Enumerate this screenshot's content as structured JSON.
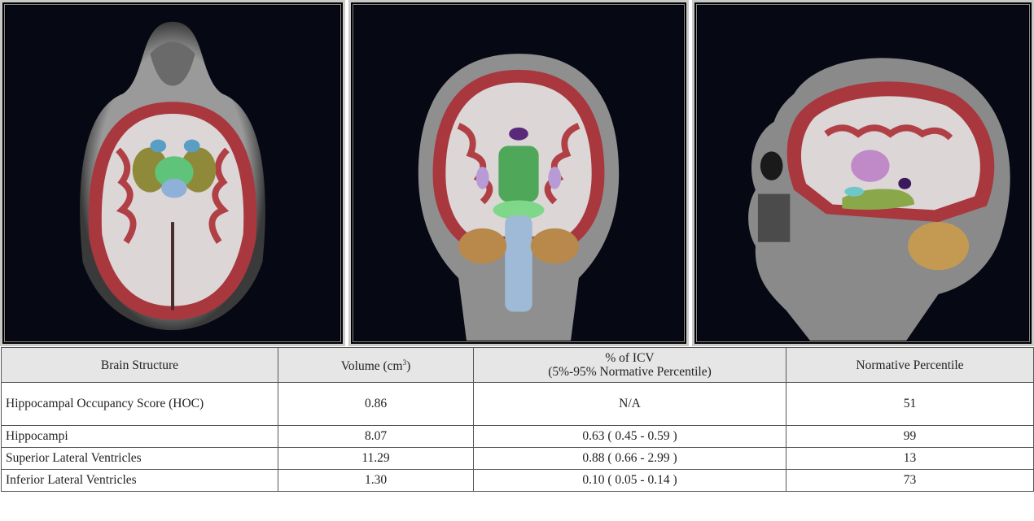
{
  "panels": [
    {
      "view": "axial"
    },
    {
      "view": "coronal"
    },
    {
      "view": "sagittal"
    }
  ],
  "table": {
    "headers": {
      "structure": "Brain Structure",
      "volume": "Volume (cm",
      "volume_sup": "3",
      "volume_close": ")",
      "icv_line1": "% of ICV",
      "icv_line2": "(5%-95% Normative Percentile)",
      "percentile": "Normative Percentile"
    },
    "rows": [
      {
        "structure": "Hippocampal Occupancy Score (HOC)",
        "volume": "0.86",
        "icv": "N/A",
        "percentile": "51"
      },
      {
        "structure": "Hippocampi",
        "volume": "8.07",
        "icv": "0.63 ( 0.45 - 0.59 )",
        "percentile": "99"
      },
      {
        "structure": "Superior Lateral Ventricles",
        "volume": "11.29",
        "icv": "0.88 ( 0.66 - 2.99 )",
        "percentile": "13"
      },
      {
        "structure": "Inferior Lateral Ventricles",
        "volume": "1.30",
        "icv": "0.10 ( 0.05 - 0.14 )",
        "percentile": "73"
      }
    ]
  }
}
